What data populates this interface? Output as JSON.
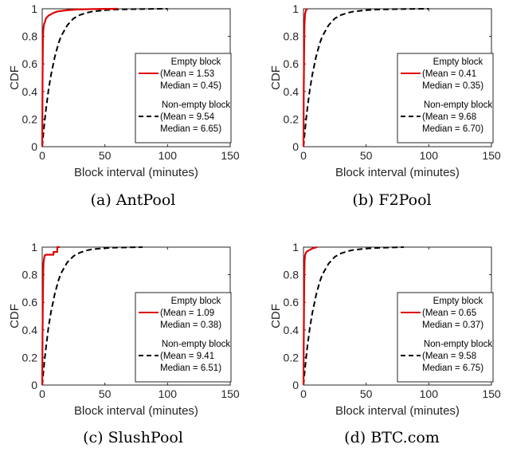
{
  "chart_data": [
    {
      "type": "line",
      "caption": "(a)  AntPool",
      "xlabel": "Block interval (minutes)",
      "ylabel": "CDF",
      "xlim": [
        0,
        150
      ],
      "ylim": [
        0,
        1
      ],
      "xticks": [
        0,
        50,
        100,
        150
      ],
      "yticks": [
        0,
        0.2,
        0.4,
        0.6,
        0.8,
        1
      ],
      "grid": false,
      "legend_position": "right",
      "series": [
        {
          "name": "Empty block",
          "stats": [
            "(Mean = 1.53",
            "Median = 0.45)"
          ],
          "color": "#e00000",
          "dash": "solid",
          "x": [
            0,
            0.3,
            0.6,
            1,
            1.5,
            2,
            3,
            4,
            5,
            7,
            9,
            12,
            16,
            20,
            28,
            40,
            60
          ],
          "y": [
            0,
            0.5,
            0.8,
            0.86,
            0.89,
            0.9,
            0.93,
            0.94,
            0.95,
            0.96,
            0.97,
            0.98,
            0.985,
            0.99,
            0.995,
            0.998,
            1.0
          ]
        },
        {
          "name": "Non-empty block",
          "stats": [
            "(Mean = 9.54",
            "Median = 6.65)"
          ],
          "color": "#000000",
          "dash": "dashed",
          "x": [
            0,
            1,
            2,
            3,
            5,
            7,
            10,
            13,
            15,
            20,
            25,
            30,
            35,
            40,
            50,
            60,
            75,
            100
          ],
          "y": [
            0,
            0.1,
            0.19,
            0.27,
            0.41,
            0.52,
            0.65,
            0.75,
            0.8,
            0.88,
            0.93,
            0.955,
            0.97,
            0.98,
            0.99,
            0.995,
            0.998,
            1.0
          ]
        }
      ]
    },
    {
      "type": "line",
      "caption": "(b)  F2Pool",
      "xlabel": "Block interval (minutes)",
      "ylabel": "CDF",
      "xlim": [
        0,
        150
      ],
      "ylim": [
        0,
        1
      ],
      "xticks": [
        0,
        50,
        100,
        150
      ],
      "yticks": [
        0,
        0.2,
        0.4,
        0.6,
        0.8,
        1
      ],
      "grid": false,
      "legend_position": "right",
      "series": [
        {
          "name": "Empty block",
          "stats": [
            "(Mean = 0.41",
            "Median = 0.35)"
          ],
          "color": "#e00000",
          "dash": "solid",
          "x": [
            0,
            0.2,
            0.35,
            0.5,
            0.8,
            1.2,
            2,
            3
          ],
          "y": [
            0,
            0.4,
            0.52,
            0.7,
            0.88,
            0.96,
            0.99,
            1.0
          ]
        },
        {
          "name": "Non-empty block",
          "stats": [
            "(Mean = 9.68",
            "Median = 6.70)"
          ],
          "color": "#000000",
          "dash": "dashed",
          "x": [
            0,
            1,
            2,
            3,
            5,
            7,
            10,
            13,
            15,
            20,
            25,
            30,
            35,
            40,
            50,
            60,
            75,
            100
          ],
          "y": [
            0,
            0.1,
            0.19,
            0.27,
            0.41,
            0.52,
            0.65,
            0.75,
            0.8,
            0.88,
            0.93,
            0.955,
            0.97,
            0.98,
            0.99,
            0.995,
            0.998,
            1.0
          ]
        }
      ]
    },
    {
      "type": "line",
      "caption": "(c)  SlushPool",
      "xlabel": "Block interval (minutes)",
      "ylabel": "CDF",
      "xlim": [
        0,
        150
      ],
      "ylim": [
        0,
        1
      ],
      "xticks": [
        0,
        50,
        100,
        150
      ],
      "yticks": [
        0,
        0.2,
        0.4,
        0.6,
        0.8,
        1
      ],
      "grid": false,
      "legend_position": "right",
      "series": [
        {
          "name": "Empty block",
          "stats": [
            "(Mean = 1.09",
            "Median = 0.38)"
          ],
          "color": "#e00000",
          "dash": "solid",
          "x": [
            0,
            0.3,
            0.5,
            0.8,
            1,
            1.5,
            2,
            3,
            9,
            9,
            12,
            12,
            14
          ],
          "y": [
            0,
            0.4,
            0.6,
            0.8,
            0.88,
            0.92,
            0.94,
            0.945,
            0.945,
            0.965,
            0.965,
            1.0,
            1.0
          ]
        },
        {
          "name": "Non-empty block",
          "stats": [
            "(Mean = 9.41",
            "Median = 6.51)"
          ],
          "color": "#000000",
          "dash": "dashed",
          "x": [
            0,
            1,
            2,
            3,
            5,
            7,
            10,
            13,
            15,
            20,
            25,
            30,
            35,
            40,
            50,
            60,
            80
          ],
          "y": [
            0,
            0.1,
            0.19,
            0.27,
            0.42,
            0.53,
            0.66,
            0.76,
            0.81,
            0.89,
            0.935,
            0.96,
            0.975,
            0.985,
            0.993,
            0.997,
            1.0
          ]
        }
      ]
    },
    {
      "type": "line",
      "caption": "(d)  BTC.com",
      "xlabel": "Block interval (minutes)",
      "ylabel": "CDF",
      "xlim": [
        0,
        150
      ],
      "ylim": [
        0,
        1
      ],
      "xticks": [
        0,
        50,
        100,
        150
      ],
      "yticks": [
        0,
        0.2,
        0.4,
        0.6,
        0.8,
        1
      ],
      "grid": false,
      "legend_position": "right",
      "series": [
        {
          "name": "Empty block",
          "stats": [
            "(Mean = 0.65",
            "Median = 0.37)"
          ],
          "color": "#e00000",
          "dash": "solid",
          "x": [
            0,
            0.2,
            0.37,
            0.6,
            0.9,
            1.2,
            2,
            3,
            5,
            7,
            9,
            11
          ],
          "y": [
            0,
            0.3,
            0.5,
            0.75,
            0.9,
            0.94,
            0.96,
            0.97,
            0.98,
            0.99,
            0.995,
            1.0
          ]
        },
        {
          "name": "Non-empty block",
          "stats": [
            "(Mean = 9.58",
            "Median = 6.75)"
          ],
          "color": "#000000",
          "dash": "dashed",
          "x": [
            0,
            1,
            2,
            3,
            5,
            7,
            10,
            13,
            15,
            20,
            25,
            30,
            35,
            40,
            50,
            60,
            80
          ],
          "y": [
            0,
            0.1,
            0.19,
            0.27,
            0.41,
            0.52,
            0.65,
            0.75,
            0.8,
            0.88,
            0.93,
            0.955,
            0.97,
            0.98,
            0.99,
            0.995,
            1.0
          ]
        }
      ]
    }
  ]
}
